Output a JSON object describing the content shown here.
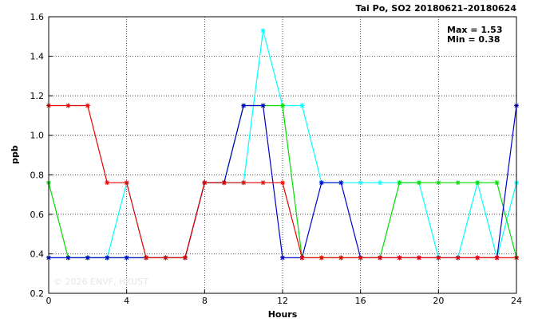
{
  "chart_data": {
    "type": "line",
    "title": "Tai Po, SO2 20180621–20180624",
    "xlabel": "Hours",
    "ylabel": "ppb",
    "xlim": [
      0,
      24
    ],
    "ylim": [
      0.2,
      1.6
    ],
    "x_ticks": [
      "0",
      "4",
      "8",
      "12",
      "16",
      "20",
      "24"
    ],
    "y_ticks": [
      "0.2",
      "0.4",
      "0.6",
      "0.8",
      "1.0",
      "1.2",
      "1.4",
      "1.6"
    ],
    "grid": true,
    "stats": {
      "max": "Max = 1.53",
      "min": "Min = 0.38"
    },
    "watermark": "© 2026 ENVF, HKUST",
    "x": [
      0,
      1,
      2,
      3,
      4,
      5,
      6,
      7,
      8,
      9,
      10,
      11,
      12,
      13,
      14,
      15,
      16,
      17,
      18,
      19,
      20,
      21,
      22,
      23,
      24
    ],
    "series": [
      {
        "color": "#00ffff",
        "values": [
          0.38,
          0.38,
          0.38,
          0.38,
          0.76,
          0.38,
          0.38,
          0.38,
          0.76,
          0.76,
          0.76,
          1.53,
          1.15,
          1.15,
          0.76,
          0.76,
          0.76,
          0.76,
          0.76,
          0.76,
          0.38,
          0.38,
          0.76,
          0.38,
          0.76
        ]
      },
      {
        "color": "#00dd00",
        "values": [
          0.76,
          0.38,
          0.38,
          0.38,
          0.38,
          0.38,
          0.38,
          0.38,
          0.76,
          0.76,
          1.15,
          1.15,
          1.15,
          0.38,
          0.38,
          0.38,
          0.38,
          0.38,
          0.76,
          0.76,
          0.76,
          0.76,
          0.76,
          0.76,
          0.38
        ]
      },
      {
        "color": "#0000cc",
        "values": [
          0.38,
          0.38,
          0.38,
          0.38,
          0.38,
          0.38,
          0.38,
          0.38,
          0.76,
          0.76,
          1.15,
          1.15,
          0.38,
          0.38,
          0.76,
          0.76,
          0.38,
          0.38,
          0.38,
          0.38,
          0.38,
          0.38,
          0.38,
          0.38,
          1.15
        ]
      },
      {
        "color": "#ee0000",
        "values": [
          1.15,
          1.15,
          1.15,
          0.76,
          0.76,
          0.38,
          0.38,
          0.38,
          0.76,
          0.76,
          0.76,
          0.76,
          0.76,
          0.38,
          0.38,
          0.38,
          0.38,
          0.38,
          0.38,
          0.38,
          0.38,
          0.38,
          0.38,
          0.38,
          0.38
        ]
      }
    ]
  }
}
